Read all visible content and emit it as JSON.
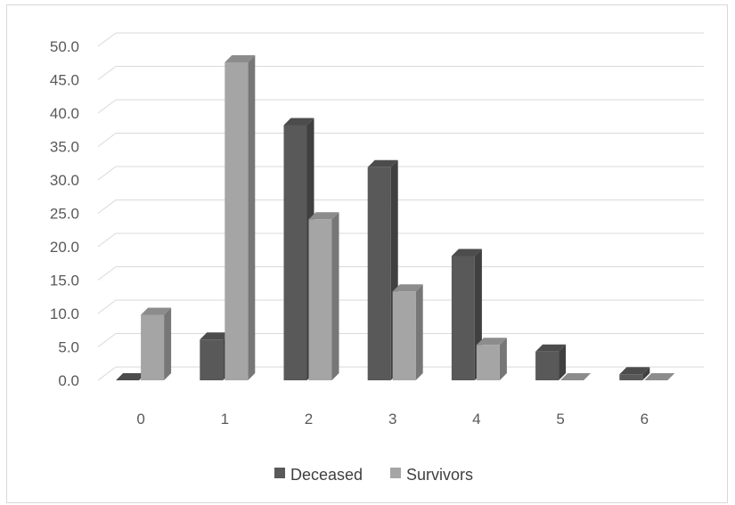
{
  "chart_data": {
    "type": "bar",
    "style": "3d-clustered-column",
    "categories": [
      "0",
      "1",
      "2",
      "3",
      "4",
      "5",
      "6"
    ],
    "series": [
      {
        "name": "Deceased",
        "values": [
          0.0,
          6.1,
          38.2,
          31.9,
          18.6,
          4.3,
          0.9
        ],
        "color": "#595959"
      },
      {
        "name": "Survivors",
        "values": [
          9.8,
          47.6,
          24.1,
          13.3,
          5.3,
          0.0,
          0.0
        ],
        "color": "#a5a5a5"
      }
    ],
    "title": "",
    "xlabel": "",
    "ylabel": "",
    "ylim": [
      0,
      50
    ],
    "yticks": [
      "0.0",
      "5.0",
      "10.0",
      "15.0",
      "20.0",
      "25.0",
      "30.0",
      "35.0",
      "40.0",
      "45.0",
      "50.0"
    ],
    "grid": true,
    "legend_position": "bottom"
  }
}
